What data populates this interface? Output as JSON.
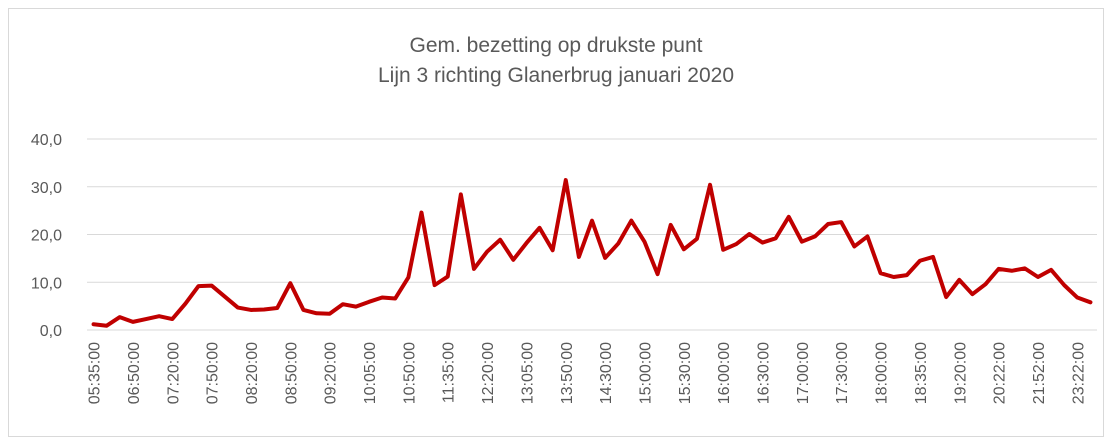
{
  "chart_data": {
    "type": "line",
    "title": "Gem. bezetting op drukste punt",
    "subtitle": "Lijn 3 richting Glanerbrug januari 2020",
    "categories": [
      "05:35:00",
      null,
      null,
      "06:50:00",
      null,
      null,
      "07:20:00",
      null,
      null,
      "07:50:00",
      null,
      null,
      "08:20:00",
      null,
      null,
      "08:50:00",
      null,
      null,
      "09:20:00",
      null,
      null,
      "10:05:00",
      null,
      null,
      "10:50:00",
      null,
      null,
      "11:35:00",
      null,
      null,
      "12:20:00",
      null,
      null,
      "13:05:00",
      null,
      null,
      "13:50:00",
      null,
      null,
      "14:30:00",
      null,
      null,
      "15:00:00",
      null,
      null,
      "15:30:00",
      null,
      null,
      "16:00:00",
      null,
      null,
      "16:30:00",
      null,
      null,
      "17:00:00",
      null,
      null,
      "17:30:00",
      null,
      null,
      "18:00:00",
      null,
      null,
      "18:35:00",
      null,
      null,
      "19:20:00",
      null,
      null,
      "20:22:00",
      null,
      null,
      "21:52:00",
      null,
      null,
      "23:22:00",
      null
    ],
    "series": [
      {
        "name": "Gem. bezetting",
        "color": "#c00000",
        "values": [
          1.2,
          0.9,
          2.7,
          1.7,
          2.3,
          2.9,
          2.3,
          5.5,
          9.2,
          9.3,
          7.0,
          4.7,
          4.2,
          4.3,
          4.6,
          9.8,
          4.2,
          3.5,
          3.4,
          5.4,
          4.9,
          5.9,
          6.8,
          6.6,
          11.0,
          24.6,
          9.4,
          11.2,
          28.4,
          12.8,
          16.4,
          18.9,
          14.7,
          18.2,
          21.4,
          16.7,
          31.4,
          15.3,
          22.9,
          15.1,
          18.1,
          22.9,
          18.5,
          11.7,
          22.0,
          16.9,
          19.1,
          30.4,
          16.8,
          18.0,
          20.1,
          18.3,
          19.2,
          23.7,
          18.5,
          19.6,
          22.2,
          22.6,
          17.5,
          19.6,
          11.9,
          11.1,
          11.5,
          14.5,
          15.3,
          6.9,
          10.5,
          7.5,
          9.6,
          12.8,
          12.4,
          12.9,
          11.1,
          12.6,
          9.4,
          6.8,
          5.8
        ]
      }
    ],
    "ylim": [
      0,
      40
    ],
    "yticks": [
      {
        "value": 0,
        "label": "0,0"
      },
      {
        "value": 10,
        "label": "10,0"
      },
      {
        "value": 20,
        "label": "20,0"
      },
      {
        "value": 30,
        "label": "30,0"
      },
      {
        "value": 40,
        "label": "40,0"
      }
    ],
    "grid": true
  }
}
